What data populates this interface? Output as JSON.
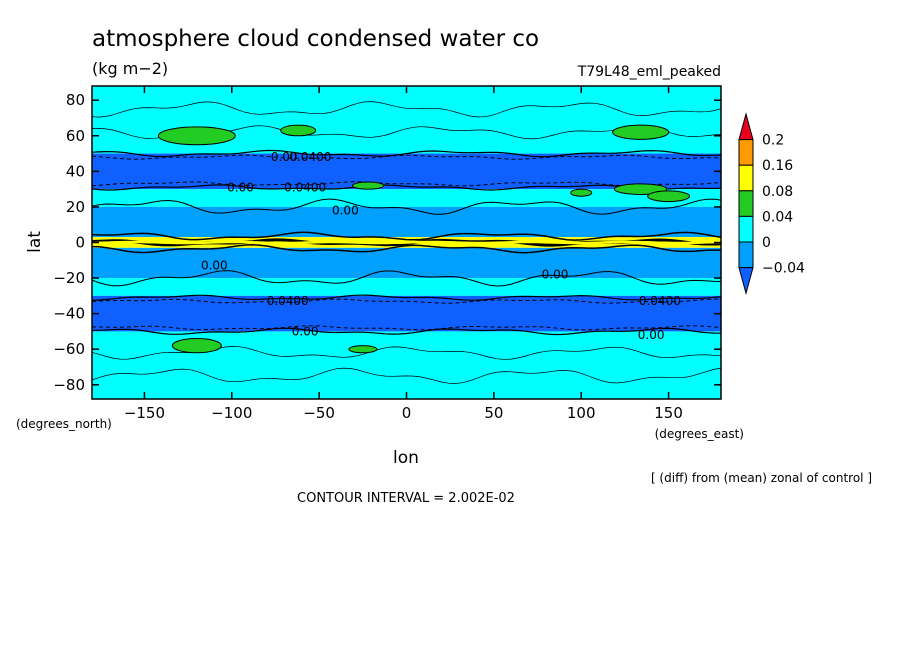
{
  "chart_data": {
    "type": "heatmap",
    "title": "atmosphere cloud condensed water co",
    "units": "(kg m−2)",
    "experiment": "T79L48_eml_peaked",
    "xlabel": "lon",
    "ylabel": "lat",
    "x_units": "(degrees_east)",
    "y_units": "(degrees_north)",
    "xlim": [
      -180,
      180
    ],
    "ylim": [
      -88,
      88
    ],
    "x_ticks": [
      -150,
      -100,
      -50,
      0,
      50,
      100,
      150
    ],
    "y_ticks": [
      80,
      60,
      40,
      20,
      0,
      -20,
      -40,
      -60,
      -80
    ],
    "contour_interval": "CONTOUR INTERVAL = 2.002E-02",
    "note": "[ (diff) from (mean) zonal of control ]",
    "colorbar": {
      "levels": [
        "0.2",
        "0.16",
        "0.08",
        "0.04",
        "0",
        "−0.04"
      ],
      "colors": [
        "#e8001c",
        "#ff9a00",
        "#ffff00",
        "#22cc22",
        "#00ffff",
        "#00a0ff",
        "#1060ff"
      ]
    },
    "zonal_bands": [
      {
        "lat": [
          50,
          88
        ],
        "value": 0.01
      },
      {
        "lat": [
          30,
          50
        ],
        "value": -0.06
      },
      {
        "lat": [
          20,
          30
        ],
        "value": 0.01
      },
      {
        "lat": [
          3,
          20
        ],
        "value": -0.02
      },
      {
        "lat": [
          -3,
          3
        ],
        "value": 0.09
      },
      {
        "lat": [
          -20,
          -3
        ],
        "value": -0.02
      },
      {
        "lat": [
          -30,
          -20
        ],
        "value": 0.01
      },
      {
        "lat": [
          -50,
          -30
        ],
        "value": -0.06
      },
      {
        "lat": [
          -88,
          -50
        ],
        "value": 0.01
      }
    ],
    "contour_labels": [
      "0.00",
      "0.0400",
      "0.00",
      "0.0400",
      "0.00",
      "0.00",
      "0.00",
      "0.0400",
      "0.00",
      "0.0400",
      "0.00"
    ]
  }
}
